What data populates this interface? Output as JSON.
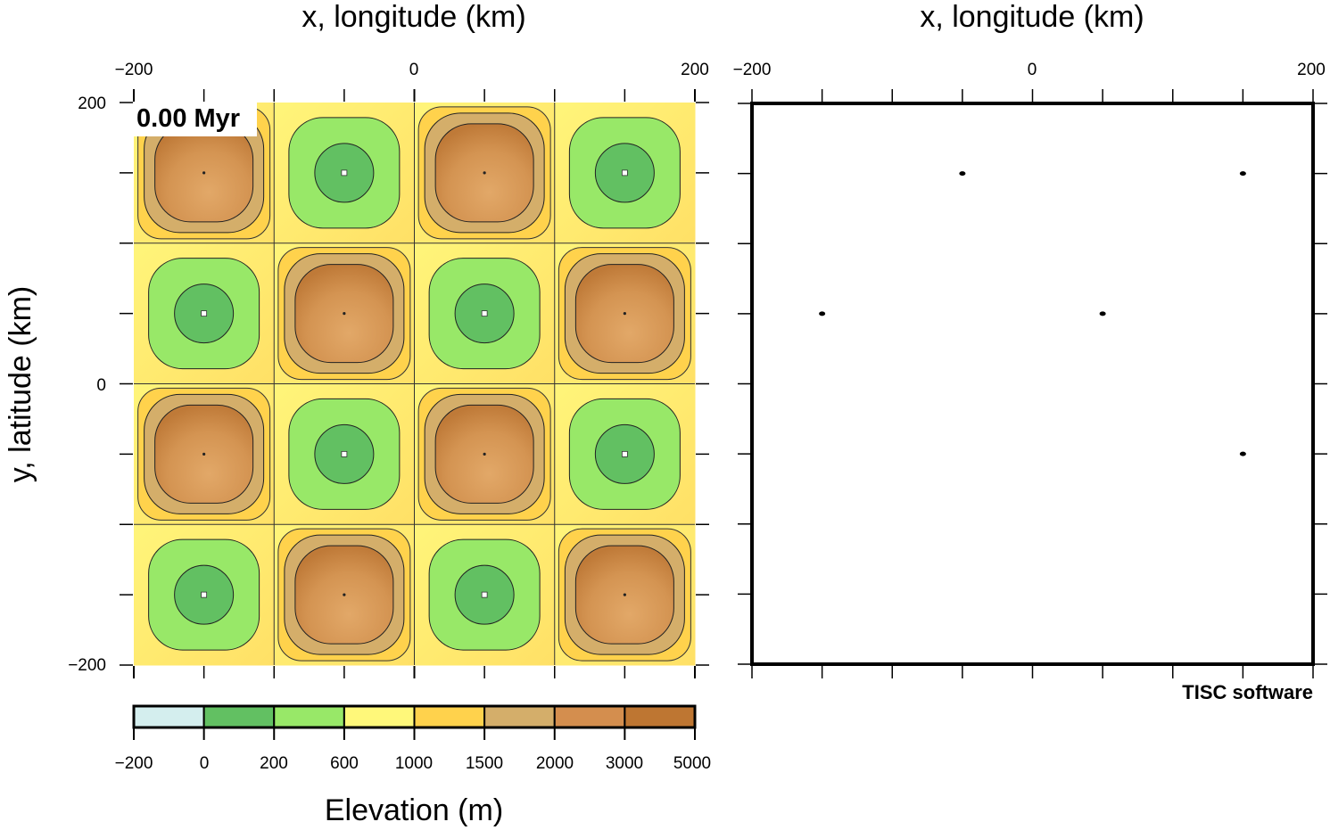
{
  "left_map": {
    "top_axis_title": "x, longitude (km)",
    "side_axis_title": "y, latitude (km)",
    "x_ticks": [
      -200,
      0,
      200
    ],
    "x_tick_labels": [
      "−200",
      "0",
      "200"
    ],
    "y_ticks": [
      200,
      0,
      -200
    ],
    "y_tick_labels": [
      "200",
      "0",
      "−200"
    ],
    "xlim": [
      -200,
      200
    ],
    "ylim": [
      -200,
      200
    ],
    "time_label": "0.00 Myr",
    "cells": [
      [
        "high",
        "low",
        "high",
        "low"
      ],
      [
        "low",
        "high",
        "low",
        "high"
      ],
      [
        "high",
        "low",
        "high",
        "low"
      ],
      [
        "low",
        "high",
        "low",
        "high"
      ]
    ]
  },
  "right_map": {
    "top_axis_title": "x, longitude (km)",
    "x_ticks": [
      -200,
      0,
      200
    ],
    "x_tick_labels": [
      "−200",
      "0",
      "200"
    ],
    "xlim": [
      -200,
      200
    ],
    "ylim": [
      -200,
      200
    ],
    "markers": [
      {
        "x": -50,
        "y": 150
      },
      {
        "x": 150,
        "y": 150
      },
      {
        "x": -150,
        "y": 50
      },
      {
        "x": 50,
        "y": 50
      },
      {
        "x": 150,
        "y": -50
      }
    ]
  },
  "colorbar": {
    "title": "Elevation (m)",
    "boundaries": [
      "−200",
      "0",
      "200",
      "600",
      "1000",
      "1500",
      "2000",
      "3000",
      "5000"
    ],
    "colors": [
      "#d4eeee",
      "#62c062",
      "#98e868",
      "#fff87a",
      "#ffd24c",
      "#d4ae6a",
      "#d48e4e",
      "#be7632"
    ]
  },
  "credit": "TISC software"
}
